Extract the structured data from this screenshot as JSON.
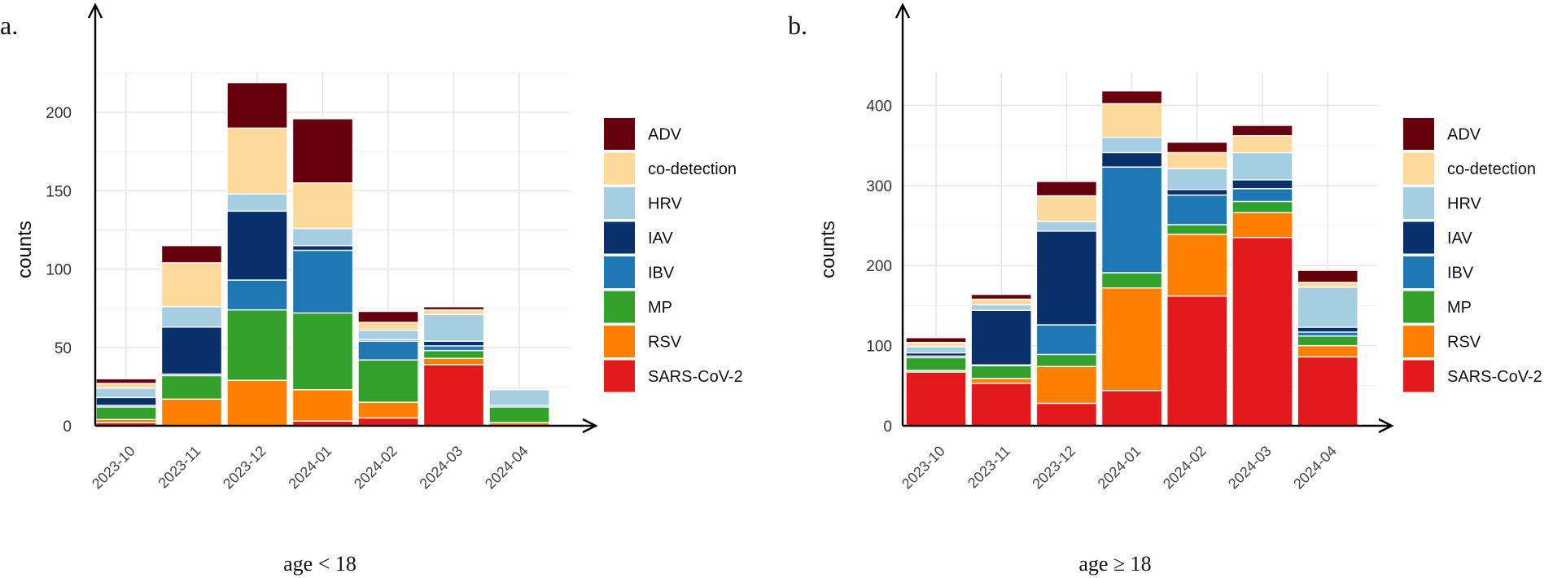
{
  "chart_data": [
    {
      "type": "bar",
      "stacked": true,
      "panel_label": "a.",
      "subtitle": "age < 18",
      "xlabel": "",
      "ylabel": "counts",
      "ylim": [
        0,
        225
      ],
      "yticks": [
        0,
        50,
        100,
        150,
        200
      ],
      "grid": true,
      "legend_position": "right",
      "categories": [
        "2023-10",
        "2023-11",
        "2023-12",
        "2024-01",
        "2024-02",
        "2024-03",
        "2024-04"
      ],
      "series": [
        {
          "name": "SARS-CoV-2",
          "color": "#e31a1c",
          "values": [
            2,
            0,
            0,
            3,
            5,
            39,
            0
          ]
        },
        {
          "name": "RSV",
          "color": "#ff7f00",
          "values": [
            2,
            17,
            29,
            20,
            10,
            4,
            2
          ]
        },
        {
          "name": "MP",
          "color": "#33a02c",
          "values": [
            8,
            15,
            45,
            49,
            27,
            5,
            10
          ]
        },
        {
          "name": "IBV",
          "color": "#1f78b4",
          "values": [
            1,
            1,
            19,
            40,
            12,
            3,
            1
          ]
        },
        {
          "name": "IAV",
          "color": "#08306b",
          "values": [
            5,
            30,
            44,
            3,
            1,
            3,
            0
          ]
        },
        {
          "name": "HRV",
          "color": "#a6cee3",
          "values": [
            6,
            13,
            11,
            11,
            6,
            17,
            10
          ]
        },
        {
          "name": "co-detection",
          "color": "#fdd99b",
          "values": [
            3,
            28,
            42,
            29,
            5,
            3,
            1
          ]
        },
        {
          "name": "ADV",
          "color": "#67000d",
          "values": [
            3,
            11,
            29,
            41,
            7,
            2,
            0
          ]
        }
      ]
    },
    {
      "type": "bar",
      "stacked": true,
      "panel_label": "b.",
      "subtitle": "age ≥ 18",
      "xlabel": "",
      "ylabel": "counts",
      "ylim": [
        0,
        440
      ],
      "yticks": [
        0,
        100,
        200,
        300,
        400
      ],
      "grid": true,
      "legend_position": "right",
      "categories": [
        "2023-10",
        "2023-11",
        "2023-12",
        "2024-01",
        "2024-02",
        "2024-03",
        "2024-04"
      ],
      "series": [
        {
          "name": "SARS-CoV-2",
          "color": "#e31a1c",
          "values": [
            67,
            53,
            28,
            44,
            162,
            235,
            86
          ]
        },
        {
          "name": "RSV",
          "color": "#ff7f00",
          "values": [
            2,
            6,
            46,
            128,
            77,
            31,
            14
          ]
        },
        {
          "name": "MP",
          "color": "#33a02c",
          "values": [
            16,
            16,
            15,
            19,
            12,
            14,
            12
          ]
        },
        {
          "name": "IBV",
          "color": "#1f78b4",
          "values": [
            2,
            1,
            37,
            132,
            37,
            16,
            5
          ]
        },
        {
          "name": "IAV",
          "color": "#08306b",
          "values": [
            4,
            68,
            117,
            18,
            7,
            11,
            6
          ]
        },
        {
          "name": "HRV",
          "color": "#a6cee3",
          "values": [
            8,
            7,
            12,
            19,
            26,
            34,
            50
          ]
        },
        {
          "name": "co-detection",
          "color": "#fdd99b",
          "values": [
            5,
            7,
            32,
            42,
            20,
            21,
            6
          ]
        },
        {
          "name": "ADV",
          "color": "#67000d",
          "values": [
            6,
            6,
            18,
            16,
            13,
            13,
            15
          ]
        }
      ]
    }
  ]
}
